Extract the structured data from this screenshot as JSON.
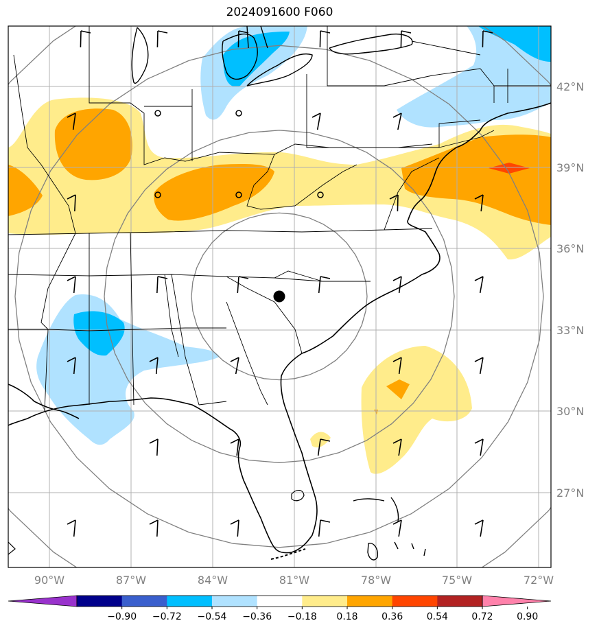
{
  "title": "2024091600 F060",
  "lon_labels": [
    "90°W",
    "87°W",
    "84°W",
    "81°W",
    "78°W",
    "75°W",
    "72°W"
  ],
  "lat_labels": [
    "42°N",
    "39°N",
    "36°N",
    "33°N",
    "30°N",
    "27°N"
  ],
  "colorbar": {
    "colors": [
      "#9932cc",
      "#00008b",
      "#3a5fcd",
      "#00bfff",
      "#b0e2ff",
      "#ffffff",
      "#ffec8b",
      "#ffa500",
      "#ff4500",
      "#b22222",
      "#ff82ab"
    ],
    "tick_labels": [
      "−0.90",
      "−0.72",
      "−0.54",
      "−0.36",
      "−0.18",
      "0.18",
      "0.36",
      "0.54",
      "0.72",
      "0.90"
    ]
  },
  "map": {
    "lon_range": [
      -91.5,
      -71.5
    ],
    "lat_range": [
      24.5,
      44.5
    ],
    "center_marker": {
      "lon": -81.35,
      "lat": 34.2
    },
    "range_rings_deg": [
      3,
      6,
      9,
      12
    ],
    "colors": {
      "positive_low": "#ffec8b",
      "positive_mid": "#ffa500",
      "positive_high": "#ff4500",
      "negative_low": "#b0e2ff",
      "negative_mid": "#00bfff",
      "grid": "#b0b0b0",
      "rings": "#808080",
      "coast": "#000000"
    }
  }
}
